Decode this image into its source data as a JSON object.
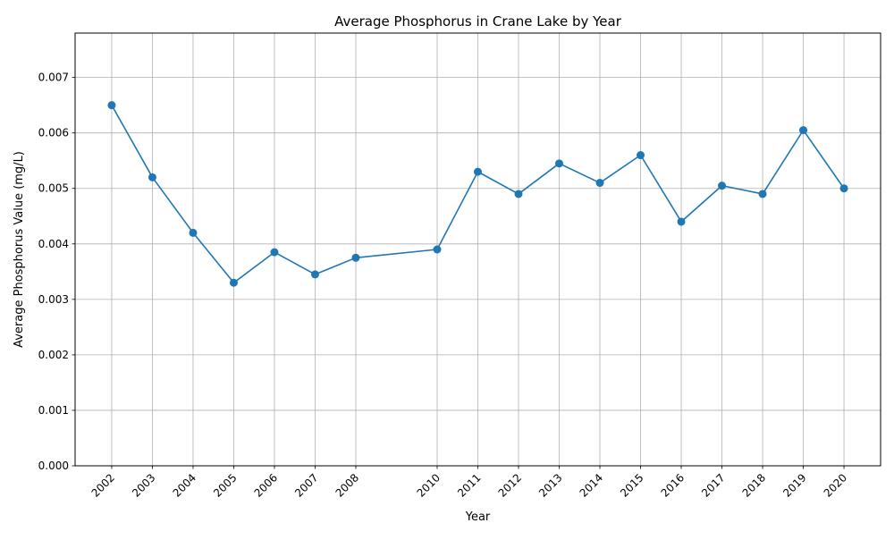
{
  "chart_data": {
    "type": "line",
    "title": "Average Phosphorus in Crane Lake by Year",
    "xlabel": "Year",
    "ylabel": "Average Phosphorus Value (mg/L)",
    "x": [
      2002,
      2003,
      2004,
      2005,
      2006,
      2007,
      2008,
      2010,
      2011,
      2012,
      2013,
      2014,
      2015,
      2016,
      2017,
      2018,
      2019,
      2020
    ],
    "series": [
      {
        "values": [
          0.0065,
          0.0052,
          0.0042,
          0.0033,
          0.00385,
          0.00345,
          0.00375,
          0.0039,
          0.0053,
          0.0049,
          0.00545,
          0.0051,
          0.0056,
          0.0044,
          0.00505,
          0.0049,
          0.00605,
          0.005
        ]
      }
    ],
    "xlim": [
      2001.1,
      2020.9
    ],
    "ylim": [
      0,
      0.0078
    ],
    "yticks": [
      "0.000",
      "0.001",
      "0.002",
      "0.003",
      "0.004",
      "0.005",
      "0.006",
      "0.007"
    ],
    "ytick_values": [
      0,
      0.001,
      0.002,
      0.003,
      0.004,
      0.005,
      0.006,
      0.007
    ],
    "grid": true,
    "markers": true,
    "line_color": "#1f77b4"
  }
}
